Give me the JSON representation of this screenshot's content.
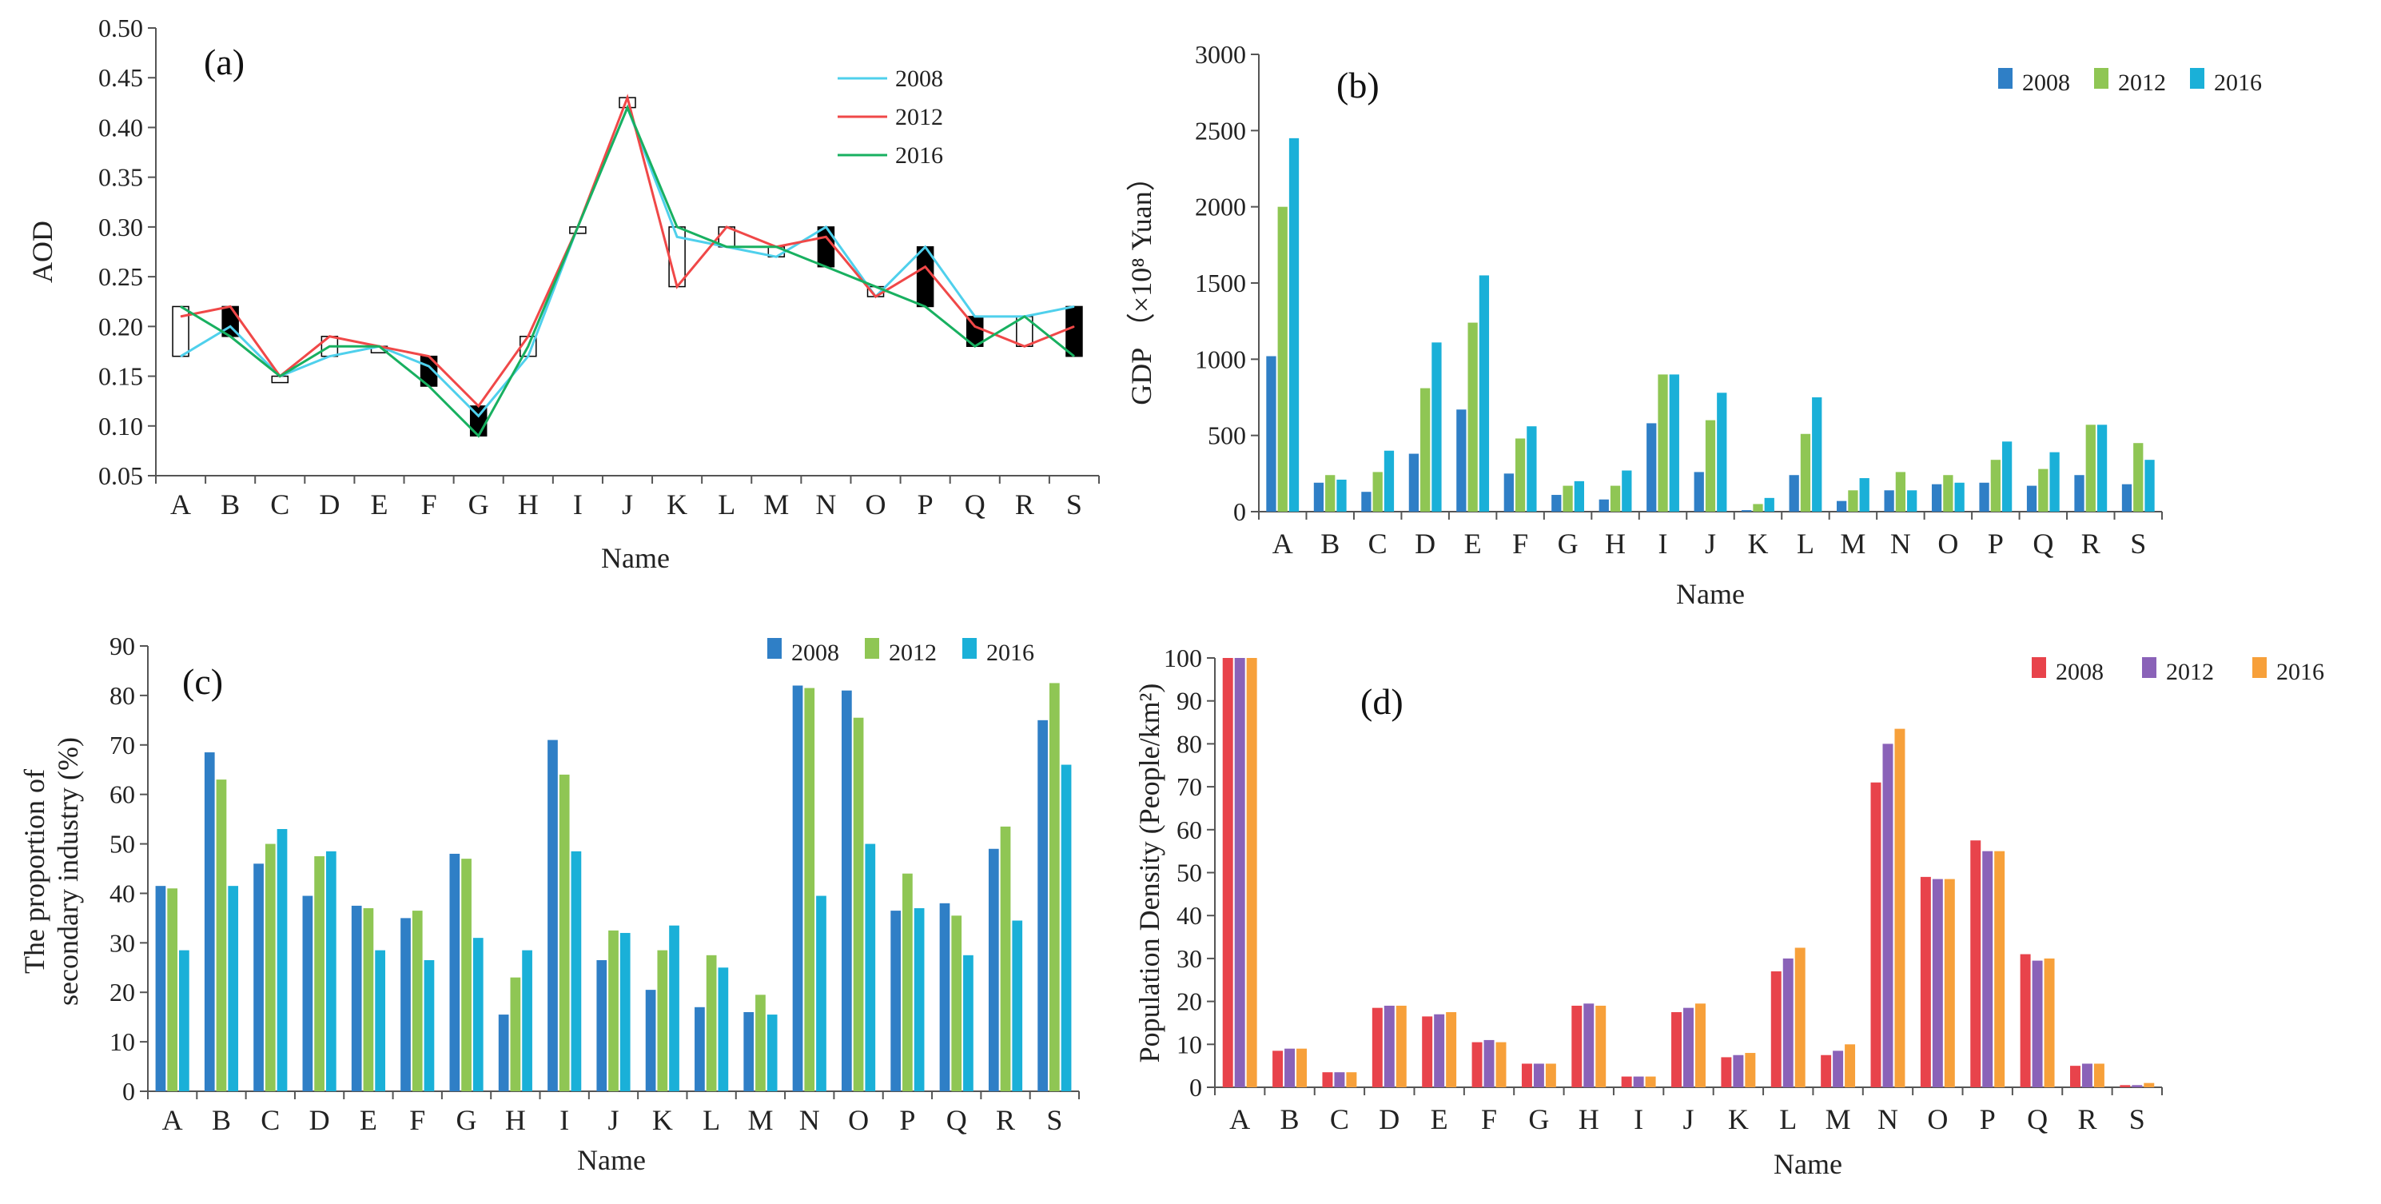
{
  "chart_data": [
    {
      "id": "a",
      "type": "line",
      "panel_label": "(a)",
      "xlabel": "Name",
      "ylabel": "AOD",
      "ylim": [
        0.05,
        0.5
      ],
      "yticks": [
        "0.05",
        "0.10",
        "0.15",
        "0.20",
        "0.25",
        "0.30",
        "0.35",
        "0.40",
        "0.45",
        "0.50"
      ],
      "categories": [
        "A",
        "B",
        "C",
        "D",
        "E",
        "F",
        "G",
        "H",
        "I",
        "J",
        "K",
        "L",
        "M",
        "N",
        "O",
        "P",
        "Q",
        "R",
        "S"
      ],
      "legend_position": "top-right",
      "series": [
        {
          "name": "2008",
          "color": "#4fd0ec",
          "values": [
            0.17,
            0.2,
            0.15,
            0.17,
            0.18,
            0.16,
            0.11,
            0.17,
            0.3,
            0.42,
            0.29,
            0.28,
            0.27,
            0.3,
            0.23,
            0.28,
            0.21,
            0.21,
            0.22
          ]
        },
        {
          "name": "2012",
          "color": "#f04848",
          "values": [
            0.21,
            0.22,
            0.15,
            0.19,
            0.18,
            0.17,
            0.12,
            0.19,
            0.3,
            0.43,
            0.24,
            0.3,
            0.28,
            0.29,
            0.23,
            0.26,
            0.2,
            0.18,
            0.2
          ]
        },
        {
          "name": "2016",
          "color": "#18b060",
          "values": [
            0.22,
            0.19,
            0.15,
            0.18,
            0.18,
            0.14,
            0.09,
            0.18,
            0.3,
            0.42,
            0.3,
            0.28,
            0.28,
            0.26,
            0.24,
            0.22,
            0.18,
            0.21,
            0.17
          ]
        }
      ]
    },
    {
      "id": "b",
      "type": "bar",
      "panel_label": "(b)",
      "xlabel": "Name",
      "ylabel": "GDP （×10⁸ Yuan）",
      "ylim": [
        0,
        3000
      ],
      "yticks": [
        "0",
        "500",
        "1000",
        "1500",
        "2000",
        "2500",
        "3000"
      ],
      "categories": [
        "A",
        "B",
        "C",
        "D",
        "E",
        "F",
        "G",
        "H",
        "I",
        "J",
        "K",
        "L",
        "M",
        "N",
        "O",
        "P",
        "Q",
        "R",
        "S"
      ],
      "legend_position": "top-right",
      "series": [
        {
          "name": "2008",
          "color": "#2f7fc6",
          "values": [
            1020,
            190,
            130,
            380,
            670,
            250,
            110,
            80,
            580,
            260,
            10,
            240,
            70,
            140,
            180,
            190,
            170,
            240,
            180
          ]
        },
        {
          "name": "2012",
          "color": "#8fc654",
          "values": [
            2000,
            240,
            260,
            810,
            1240,
            480,
            170,
            170,
            900,
            600,
            50,
            510,
            140,
            260,
            240,
            340,
            280,
            570,
            450
          ]
        },
        {
          "name": "2016",
          "color": "#1ab0d8",
          "values": [
            2450,
            210,
            400,
            1110,
            1550,
            560,
            200,
            270,
            900,
            780,
            90,
            750,
            220,
            140,
            190,
            460,
            390,
            570,
            340
          ]
        }
      ]
    },
    {
      "id": "c",
      "type": "bar",
      "panel_label": "(c)",
      "xlabel": "Name",
      "ylabel": [
        "The proportion of",
        "secondary industry (%)"
      ],
      "ylim": [
        0,
        90
      ],
      "yticks": [
        "0",
        "10",
        "20",
        "30",
        "40",
        "50",
        "60",
        "70",
        "80",
        "90"
      ],
      "categories": [
        "A",
        "B",
        "C",
        "D",
        "E",
        "F",
        "G",
        "H",
        "I",
        "J",
        "K",
        "L",
        "M",
        "N",
        "O",
        "P",
        "Q",
        "R",
        "S"
      ],
      "legend_position": "top-right",
      "series": [
        {
          "name": "2008",
          "color": "#2f7fc6",
          "values": [
            41.5,
            68.5,
            46,
            39.5,
            37.5,
            35,
            48,
            15.5,
            71,
            26.5,
            20.5,
            17,
            16,
            82,
            81,
            36.5,
            38,
            49,
            75
          ]
        },
        {
          "name": "2012",
          "color": "#8fc654",
          "values": [
            41,
            63,
            50,
            47.5,
            37,
            36.5,
            47,
            23,
            64,
            32.5,
            28.5,
            27.5,
            19.5,
            81.5,
            75.5,
            44,
            35.5,
            53.5,
            82.5
          ]
        },
        {
          "name": "2016",
          "color": "#1ab0d8",
          "values": [
            28.5,
            41.5,
            53,
            48.5,
            28.5,
            26.5,
            31,
            28.5,
            48.5,
            32,
            33.5,
            25,
            15.5,
            39.5,
            50,
            37,
            27.5,
            34.5,
            66
          ]
        }
      ]
    },
    {
      "id": "d",
      "type": "bar",
      "panel_label": "(d)",
      "xlabel": "Name",
      "ylabel": "Population Density (People/km²)",
      "ylim": [
        0,
        100
      ],
      "yticks": [
        "0",
        "10",
        "20",
        "30",
        "40",
        "50",
        "60",
        "70",
        "80",
        "90",
        "100"
      ],
      "categories": [
        "A",
        "B",
        "C",
        "D",
        "E",
        "F",
        "G",
        "H",
        "I",
        "J",
        "K",
        "L",
        "M",
        "N",
        "O",
        "P",
        "Q",
        "R",
        "S"
      ],
      "legend_position": "top-right",
      "series": [
        {
          "name": "2008",
          "color": "#e8434b",
          "values": [
            100,
            8.5,
            3.5,
            18.5,
            16.5,
            10.5,
            5.5,
            19,
            2.5,
            17.5,
            7,
            27,
            7.5,
            71,
            49,
            57.5,
            31,
            5,
            0.5
          ]
        },
        {
          "name": "2012",
          "color": "#8a62b8",
          "values": [
            100,
            9,
            3.5,
            19,
            17,
            11,
            5.5,
            19.5,
            2.5,
            18.5,
            7.5,
            30,
            8.5,
            80,
            48.5,
            55,
            29.5,
            5.5,
            0.5
          ]
        },
        {
          "name": "2016",
          "color": "#f7a03a",
          "values": [
            100,
            9,
            3.5,
            19,
            17.5,
            10.5,
            5.5,
            19,
            2.5,
            19.5,
            8,
            32.5,
            10,
            83.5,
            48.5,
            55,
            30,
            5.5,
            1
          ]
        }
      ]
    }
  ]
}
